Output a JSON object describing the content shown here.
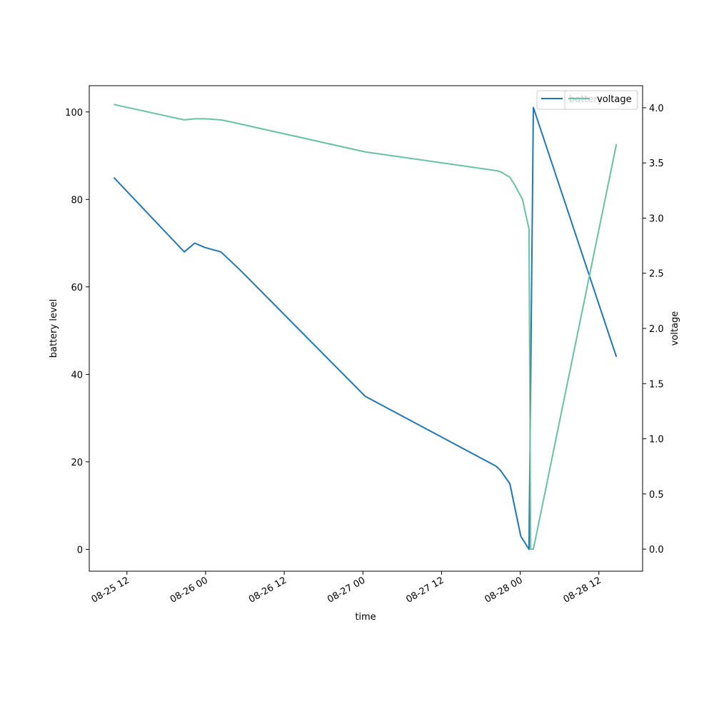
{
  "chart_data": {
    "type": "line",
    "xlabel": "time",
    "ylabel_left": "battery level",
    "ylabel_right": "voltage",
    "x_range": [
      "2025-08-25T06:15",
      "2025-08-28T18:40"
    ],
    "y_left_range": [
      -5,
      106
    ],
    "y_right_range": [
      -0.2,
      4.2
    ],
    "x_ticks": [
      {
        "t": "2025-08-25T12:00",
        "label": "08-25 12"
      },
      {
        "t": "2025-08-26T00:00",
        "label": "08-26 00"
      },
      {
        "t": "2025-08-26T12:00",
        "label": "08-26 12"
      },
      {
        "t": "2025-08-27T00:00",
        "label": "08-27 00"
      },
      {
        "t": "2025-08-27T12:00",
        "label": "08-27 12"
      },
      {
        "t": "2025-08-28T00:00",
        "label": "08-28 00"
      },
      {
        "t": "2025-08-28T12:00",
        "label": "08-28 12"
      }
    ],
    "y_left_ticks": [
      {
        "v": 0,
        "label": "0"
      },
      {
        "v": 20,
        "label": "20"
      },
      {
        "v": 40,
        "label": "40"
      },
      {
        "v": 60,
        "label": "60"
      },
      {
        "v": 80,
        "label": "80"
      },
      {
        "v": 100,
        "label": "100"
      }
    ],
    "y_right_ticks": [
      {
        "v": 0.0,
        "label": "0.0"
      },
      {
        "v": 0.5,
        "label": "0.5"
      },
      {
        "v": 1.0,
        "label": "1.0"
      },
      {
        "v": 1.5,
        "label": "1.5"
      },
      {
        "v": 2.0,
        "label": "2.0"
      },
      {
        "v": 2.5,
        "label": "2.5"
      },
      {
        "v": 3.0,
        "label": "3.0"
      },
      {
        "v": 3.5,
        "label": "3.5"
      },
      {
        "v": 4.0,
        "label": "4.0"
      }
    ],
    "grid": false,
    "series": [
      {
        "name": "battery",
        "axis": "left",
        "color": "#1f77b4",
        "points": [
          [
            "2025-08-25T10:00",
            85
          ],
          [
            "2025-08-25T20:45",
            68
          ],
          [
            "2025-08-25T22:20",
            70
          ],
          [
            "2025-08-25T23:55",
            69
          ],
          [
            "2025-08-26T02:20",
            68
          ],
          [
            "2025-08-26T05:10",
            64
          ],
          [
            "2025-08-27T00:20",
            35
          ],
          [
            "2025-08-27T20:20",
            19
          ],
          [
            "2025-08-27T21:00",
            18
          ],
          [
            "2025-08-27T22:25",
            15
          ],
          [
            "2025-08-28T00:05",
            3
          ],
          [
            "2025-08-28T01:20",
            0
          ],
          [
            "2025-08-28T02:00",
            101
          ],
          [
            "2025-08-28T14:40",
            44
          ]
        ]
      },
      {
        "name": "voltage",
        "axis": "right",
        "color": "#66c2a5",
        "points": [
          [
            "2025-08-25T10:00",
            4.03
          ],
          [
            "2025-08-25T20:45",
            3.89
          ],
          [
            "2025-08-25T22:20",
            3.9
          ],
          [
            "2025-08-25T23:55",
            3.9
          ],
          [
            "2025-08-26T02:20",
            3.89
          ],
          [
            "2025-08-26T04:00",
            3.87
          ],
          [
            "2025-08-27T00:20",
            3.6
          ],
          [
            "2025-08-27T20:20",
            3.43
          ],
          [
            "2025-08-27T21:00",
            3.42
          ],
          [
            "2025-08-27T22:25",
            3.37
          ],
          [
            "2025-08-27T23:10",
            3.3
          ],
          [
            "2025-08-28T00:20",
            3.17
          ],
          [
            "2025-08-28T01:20",
            2.9
          ],
          [
            "2025-08-28T01:35",
            0.0
          ],
          [
            "2025-08-28T02:00",
            0.0
          ],
          [
            "2025-08-28T14:40",
            3.67
          ]
        ]
      }
    ],
    "legend_left": {
      "placement": "upper-right",
      "label": "battery",
      "color": "#1f77b4"
    },
    "legend_right": {
      "placement": "upper-right",
      "label": "voltage",
      "color": "#66c2a5"
    }
  }
}
